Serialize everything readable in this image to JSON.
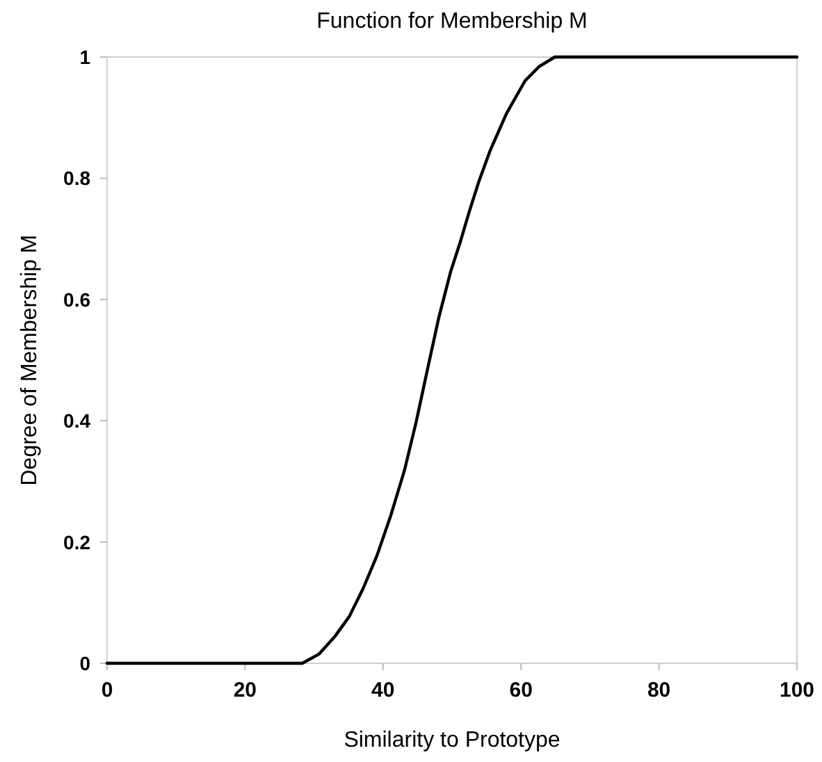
{
  "chart_data": {
    "type": "line",
    "title": "Function for Membership M",
    "xlabel": "Similarity to Prototype",
    "ylabel": "Degree of Membership M",
    "x": [
      0,
      28.3,
      30.7,
      33,
      35.1,
      37.1,
      39.1,
      41.1,
      43.1,
      44.8,
      46.5,
      48.1,
      49.8,
      51.2,
      52.5,
      53.9,
      55.5,
      57.9,
      60.6,
      62.6,
      64.9,
      100
    ],
    "series": [
      {
        "color": "#000000",
        "values": [
          0,
          0,
          0.015,
          0.044,
          0.077,
          0.123,
          0.177,
          0.243,
          0.318,
          0.398,
          0.488,
          0.571,
          0.646,
          0.695,
          0.745,
          0.795,
          0.845,
          0.907,
          0.961,
          0.984,
          1,
          1
        ]
      }
    ],
    "xlim": [
      0,
      100
    ],
    "ylim": [
      0,
      1
    ],
    "xticks": [
      0,
      20,
      40,
      60,
      80,
      100
    ],
    "yticks": [
      0,
      0.2,
      0.4,
      0.6,
      0.8,
      1
    ],
    "grid": false,
    "marker": "none",
    "line_style": "solid"
  }
}
